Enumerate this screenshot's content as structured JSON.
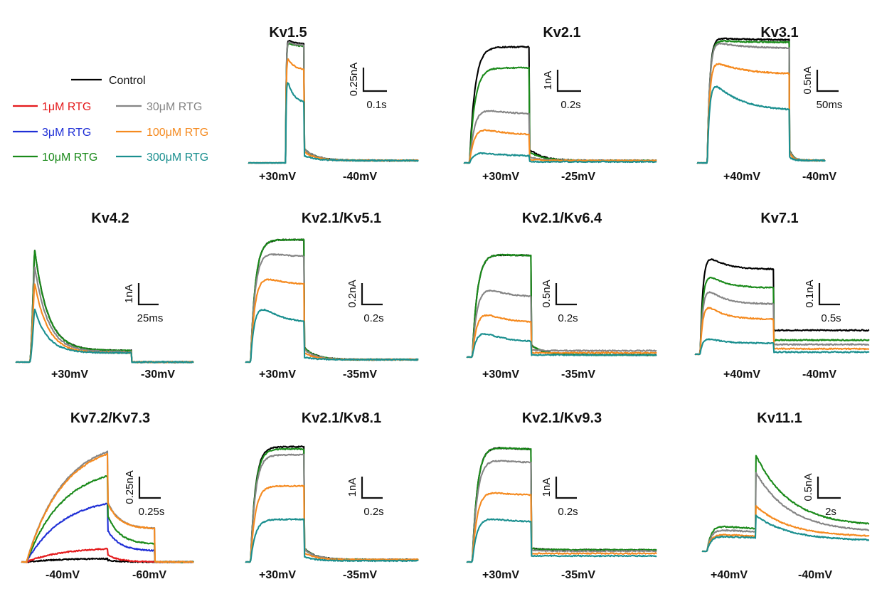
{
  "legend": {
    "entries": [
      {
        "label": "Control",
        "color": "#000000"
      },
      {
        "label": "1μM RTG",
        "color": "#e41a1c"
      },
      {
        "label": "3μM RTG",
        "color": "#1f2fd6"
      },
      {
        "label": "10μM RTG",
        "color": "#1a8a1a"
      },
      {
        "label": "30μM RTG",
        "color": "#858585"
      },
      {
        "label": "100μM RTG",
        "color": "#f58a1f"
      },
      {
        "label": "300μM RTG",
        "color": "#1a8f8f"
      }
    ]
  },
  "chart_data": [
    {
      "type": "line",
      "title": "Kv1.5",
      "voltage_labels": [
        "+30mV",
        "-40mV"
      ],
      "scale_bar": {
        "current": "0.25nA",
        "time": "0.1s"
      },
      "series": [
        {
          "name": "Control",
          "step_amplitude": 1.0,
          "peak_amplitude": 1.05,
          "tail_amplitude": 0.02
        },
        {
          "name": "10μM RTG",
          "step_amplitude": 0.98,
          "peak_amplitude": 1.03,
          "tail_amplitude": 0.02
        },
        {
          "name": "30μM RTG",
          "step_amplitude": 0.99,
          "peak_amplitude": 1.04,
          "tail_amplitude": 0.02
        },
        {
          "name": "100μM RTG",
          "step_amplitude": 0.78,
          "peak_amplitude": 0.93,
          "tail_amplitude": 0.02
        },
        {
          "name": "300μM RTG",
          "step_amplitude": 0.5,
          "peak_amplitude": 0.77,
          "tail_amplitude": 0.02
        }
      ]
    },
    {
      "type": "line",
      "title": "Kv2.1",
      "voltage_labels": [
        "+30mV",
        "-25mV"
      ],
      "scale_bar": {
        "current": "1nA",
        "time": "0.2s"
      },
      "series": [
        {
          "name": "Control",
          "step_amplitude": 1.0,
          "peak_amplitude": 1.0,
          "tail_amplitude": 0.02
        },
        {
          "name": "10μM RTG",
          "step_amplitude": 0.82,
          "peak_amplitude": 0.82,
          "tail_amplitude": 0.02
        },
        {
          "name": "30μM RTG",
          "step_amplitude": 0.42,
          "peak_amplitude": 0.53,
          "tail_amplitude": 0.02
        },
        {
          "name": "100μM RTG",
          "step_amplitude": 0.24,
          "peak_amplitude": 0.37,
          "tail_amplitude": 0.02
        },
        {
          "name": "300μM RTG",
          "step_amplitude": 0.06,
          "peak_amplitude": 0.12,
          "tail_amplitude": 0.01
        }
      ]
    },
    {
      "type": "line",
      "title": "Kv3.1",
      "voltage_labels": [
        "+40mV",
        "-40mV"
      ],
      "scale_bar": {
        "current": "0.5nA",
        "time": "50ms"
      },
      "series": [
        {
          "name": "Control",
          "step_amplitude": 1.0,
          "peak_amplitude": 1.02,
          "tail_amplitude": 0.02
        },
        {
          "name": "10μM RTG",
          "step_amplitude": 0.98,
          "peak_amplitude": 1.0,
          "tail_amplitude": 0.02
        },
        {
          "name": "30μM RTG",
          "step_amplitude": 0.93,
          "peak_amplitude": 1.0,
          "tail_amplitude": 0.02
        },
        {
          "name": "100μM RTG",
          "step_amplitude": 0.72,
          "peak_amplitude": 0.86,
          "tail_amplitude": 0.02
        },
        {
          "name": "300μM RTG",
          "step_amplitude": 0.42,
          "peak_amplitude": 0.72,
          "tail_amplitude": 0.02
        }
      ]
    },
    {
      "type": "line",
      "title": "Kv4.2",
      "voltage_labels": [
        "+30mV",
        "-30mV"
      ],
      "scale_bar": {
        "current": "1nA",
        "time": "25ms"
      },
      "series": [
        {
          "name": "Control",
          "step_amplitude": 0.1,
          "peak_amplitude": 1.0,
          "tail_amplitude": 0.0
        },
        {
          "name": "10μM RTG",
          "step_amplitude": 0.1,
          "peak_amplitude": 1.0,
          "tail_amplitude": 0.0
        },
        {
          "name": "30μM RTG",
          "step_amplitude": 0.09,
          "peak_amplitude": 0.85,
          "tail_amplitude": 0.0
        },
        {
          "name": "100μM RTG",
          "step_amplitude": 0.08,
          "peak_amplitude": 0.7,
          "tail_amplitude": 0.0
        },
        {
          "name": "300μM RTG",
          "step_amplitude": 0.08,
          "peak_amplitude": 0.47,
          "tail_amplitude": 0.0
        }
      ]
    },
    {
      "type": "line",
      "title": "Kv2.1/Kv5.1",
      "voltage_labels": [
        "+30mV",
        "-35mV"
      ],
      "scale_bar": {
        "current": "0.2nA",
        "time": "0.2s"
      },
      "series": [
        {
          "name": "Control",
          "step_amplitude": 1.0,
          "peak_amplitude": 1.0,
          "tail_amplitude": 0.02
        },
        {
          "name": "10μM RTG",
          "step_amplitude": 1.0,
          "peak_amplitude": 1.0,
          "tail_amplitude": 0.02
        },
        {
          "name": "30μM RTG",
          "step_amplitude": 0.86,
          "peak_amplitude": 0.96,
          "tail_amplitude": 0.02
        },
        {
          "name": "100μM RTG",
          "step_amplitude": 0.63,
          "peak_amplitude": 0.8,
          "tail_amplitude": 0.02
        },
        {
          "name": "300μM RTG",
          "step_amplitude": 0.32,
          "peak_amplitude": 0.61,
          "tail_amplitude": 0.02
        }
      ]
    },
    {
      "type": "line",
      "title": "Kv2.1/Kv6.4",
      "voltage_labels": [
        "+30mV",
        "-35mV"
      ],
      "scale_bar": {
        "current": "0.5nA",
        "time": "0.2s"
      },
      "series": [
        {
          "name": "Control",
          "step_amplitude": 0.95,
          "peak_amplitude": 1.0,
          "tail_amplitude": 0.02
        },
        {
          "name": "10μM RTG",
          "step_amplitude": 0.95,
          "peak_amplitude": 1.0,
          "tail_amplitude": 0.02
        },
        {
          "name": "30μM RTG",
          "step_amplitude": 0.56,
          "peak_amplitude": 0.77,
          "tail_amplitude": 0.06
        },
        {
          "name": "100μM RTG",
          "step_amplitude": 0.32,
          "peak_amplitude": 0.53,
          "tail_amplitude": 0.04
        },
        {
          "name": "300μM RTG",
          "step_amplitude": 0.14,
          "peak_amplitude": 0.33,
          "tail_amplitude": 0.02
        }
      ]
    },
    {
      "type": "line",
      "title": "Kv7.1",
      "voltage_labels": [
        "+40mV",
        "-40mV"
      ],
      "scale_bar": {
        "current": "0.1nA",
        "time": "0.5s"
      },
      "series": [
        {
          "name": "Control",
          "step_amplitude": 0.78,
          "peak_amplitude": 1.0,
          "tail_amplitude": 0.22
        },
        {
          "name": "10μM RTG",
          "step_amplitude": 0.61,
          "peak_amplitude": 0.83,
          "tail_amplitude": 0.13
        },
        {
          "name": "30μM RTG",
          "step_amplitude": 0.46,
          "peak_amplitude": 0.7,
          "tail_amplitude": 0.09
        },
        {
          "name": "100μM RTG",
          "step_amplitude": 0.32,
          "peak_amplitude": 0.54,
          "tail_amplitude": 0.05
        },
        {
          "name": "300μM RTG",
          "step_amplitude": 0.1,
          "peak_amplitude": 0.18,
          "tail_amplitude": 0.02
        }
      ]
    },
    {
      "type": "line",
      "title": "Kv7.2/Kv7.3",
      "voltage_labels": [
        "-40mV",
        "-60mV"
      ],
      "scale_bar": {
        "current": "0.25nA",
        "time": "0.25s"
      },
      "series": [
        {
          "name": "Control",
          "step_amplitude": 0.03,
          "peak_amplitude": 0.03,
          "tail_amplitude": 0.0
        },
        {
          "name": "1μM RTG",
          "step_amplitude": 0.12,
          "peak_amplitude": 0.12,
          "tail_amplitude": 0.0
        },
        {
          "name": "3μM RTG",
          "step_amplitude": 0.53,
          "peak_amplitude": 0.53,
          "tail_amplitude": 0.1
        },
        {
          "name": "10μM RTG",
          "step_amplitude": 0.78,
          "peak_amplitude": 0.78,
          "tail_amplitude": 0.16
        },
        {
          "name": "30μM RTG",
          "step_amplitude": 1.0,
          "peak_amplitude": 1.0,
          "tail_amplitude": 0.3
        },
        {
          "name": "100μM RTG",
          "step_amplitude": 0.98,
          "peak_amplitude": 0.98,
          "tail_amplitude": 0.3
        }
      ]
    },
    {
      "type": "line",
      "title": "Kv2.1/Kv8.1",
      "voltage_labels": [
        "+30mV",
        "-35mV"
      ],
      "scale_bar": {
        "current": "1nA",
        "time": "0.2s"
      },
      "series": [
        {
          "name": "Control",
          "step_amplitude": 1.0,
          "peak_amplitude": 1.0,
          "tail_amplitude": 0.02
        },
        {
          "name": "10μM RTG",
          "step_amplitude": 0.98,
          "peak_amplitude": 0.98,
          "tail_amplitude": 0.02
        },
        {
          "name": "30μM RTG",
          "step_amplitude": 0.93,
          "peak_amplitude": 0.93,
          "tail_amplitude": 0.02
        },
        {
          "name": "100μM RTG",
          "step_amplitude": 0.66,
          "peak_amplitude": 0.66,
          "tail_amplitude": 0.02
        },
        {
          "name": "300μM RTG",
          "step_amplitude": 0.37,
          "peak_amplitude": 0.37,
          "tail_amplitude": 0.01
        }
      ]
    },
    {
      "type": "line",
      "title": "Kv2.1/Kv9.3",
      "voltage_labels": [
        "+30mV",
        "-35mV"
      ],
      "scale_bar": {
        "current": "1nA",
        "time": "0.2s"
      },
      "series": [
        {
          "name": "Control",
          "step_amplitude": 0.93,
          "peak_amplitude": 1.0,
          "tail_amplitude": 0.1
        },
        {
          "name": "10μM RTG",
          "step_amplitude": 0.93,
          "peak_amplitude": 1.0,
          "tail_amplitude": 0.1
        },
        {
          "name": "30μM RTG",
          "step_amplitude": 0.82,
          "peak_amplitude": 0.9,
          "tail_amplitude": 0.09
        },
        {
          "name": "100μM RTG",
          "step_amplitude": 0.55,
          "peak_amplitude": 0.64,
          "tail_amplitude": 0.07
        },
        {
          "name": "300μM RTG",
          "step_amplitude": 0.33,
          "peak_amplitude": 0.42,
          "tail_amplitude": 0.05
        }
      ]
    },
    {
      "type": "line",
      "title": "Kv11.1",
      "voltage_labels": [
        "+40mV",
        "-40mV"
      ],
      "scale_bar": {
        "current": "0.5nA",
        "time": "2s"
      },
      "series": [
        {
          "name": "10μM RTG",
          "step_amplitude": 0.27,
          "peak_amplitude": 1.0,
          "tail_amplitude": 0.26
        },
        {
          "name": "30μM RTG",
          "step_amplitude": 0.23,
          "peak_amplitude": 0.82,
          "tail_amplitude": 0.2
        },
        {
          "name": "100μM RTG",
          "step_amplitude": 0.18,
          "peak_amplitude": 0.47,
          "tail_amplitude": 0.15
        },
        {
          "name": "300μM RTG",
          "step_amplitude": 0.16,
          "peak_amplitude": 0.37,
          "tail_amplitude": 0.11
        }
      ]
    }
  ]
}
